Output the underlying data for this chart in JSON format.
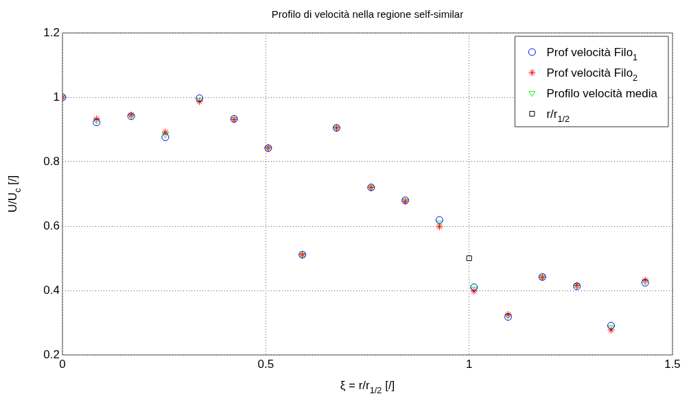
{
  "chart_data": {
    "type": "scatter",
    "title": "Profilo di velocità nella regione self-similar",
    "xlabel": "ξ = r/r$_{1/2}$ [/]",
    "ylabel": "U/U$_{c}$ [/]",
    "xlim": [
      0,
      1.5
    ],
    "xticks": [
      0,
      0.5,
      1,
      1.5
    ],
    "ylim": [
      0.2,
      1.2
    ],
    "yticks": [
      0.2,
      0.4,
      0.6,
      0.8,
      1,
      1.2
    ],
    "grid": true,
    "legend": "top right",
    "x": [
      0,
      0.084,
      0.169,
      0.253,
      0.337,
      0.422,
      0.506,
      0.59,
      0.674,
      0.759,
      0.843,
      0.927,
      1.012,
      1.096,
      1.18,
      1.265,
      1.349,
      1.433
    ],
    "series": [
      {
        "name": "Prof velocità Filo$_{1}$",
        "color": "#0000ff",
        "marker": "circle",
        "values": [
          1,
          0.922,
          0.941,
          0.876,
          0.997,
          0.933,
          0.842,
          0.511,
          0.905,
          0.72,
          0.68,
          0.619,
          0.41,
          0.318,
          0.442,
          0.413,
          0.291,
          0.424
        ]
      },
      {
        "name": "Prof velocità Filo$_{2}$",
        "color": "#ff0000",
        "marker": "cross",
        "values": [
          1,
          0.933,
          0.945,
          0.892,
          0.987,
          0.931,
          0.843,
          0.511,
          0.905,
          0.72,
          0.677,
          0.598,
          0.398,
          0.325,
          0.441,
          0.416,
          0.277,
          0.432
        ]
      },
      {
        "name": "Profilo velocità media",
        "color": "#00ff00",
        "marker": "triangle",
        "values": [
          1,
          0.928,
          0.943,
          0.884,
          0.992,
          0.932,
          0.843,
          0.511,
          0.905,
          0.72,
          0.679,
          0.61,
          0.405,
          0.322,
          0.442,
          0.415,
          0.285,
          0.428
        ]
      },
      {
        "name": "r/r$_{1/2}$",
        "color": "#000000",
        "marker": "square",
        "x": [
          1
        ],
        "values": [
          0.5
        ]
      }
    ]
  }
}
